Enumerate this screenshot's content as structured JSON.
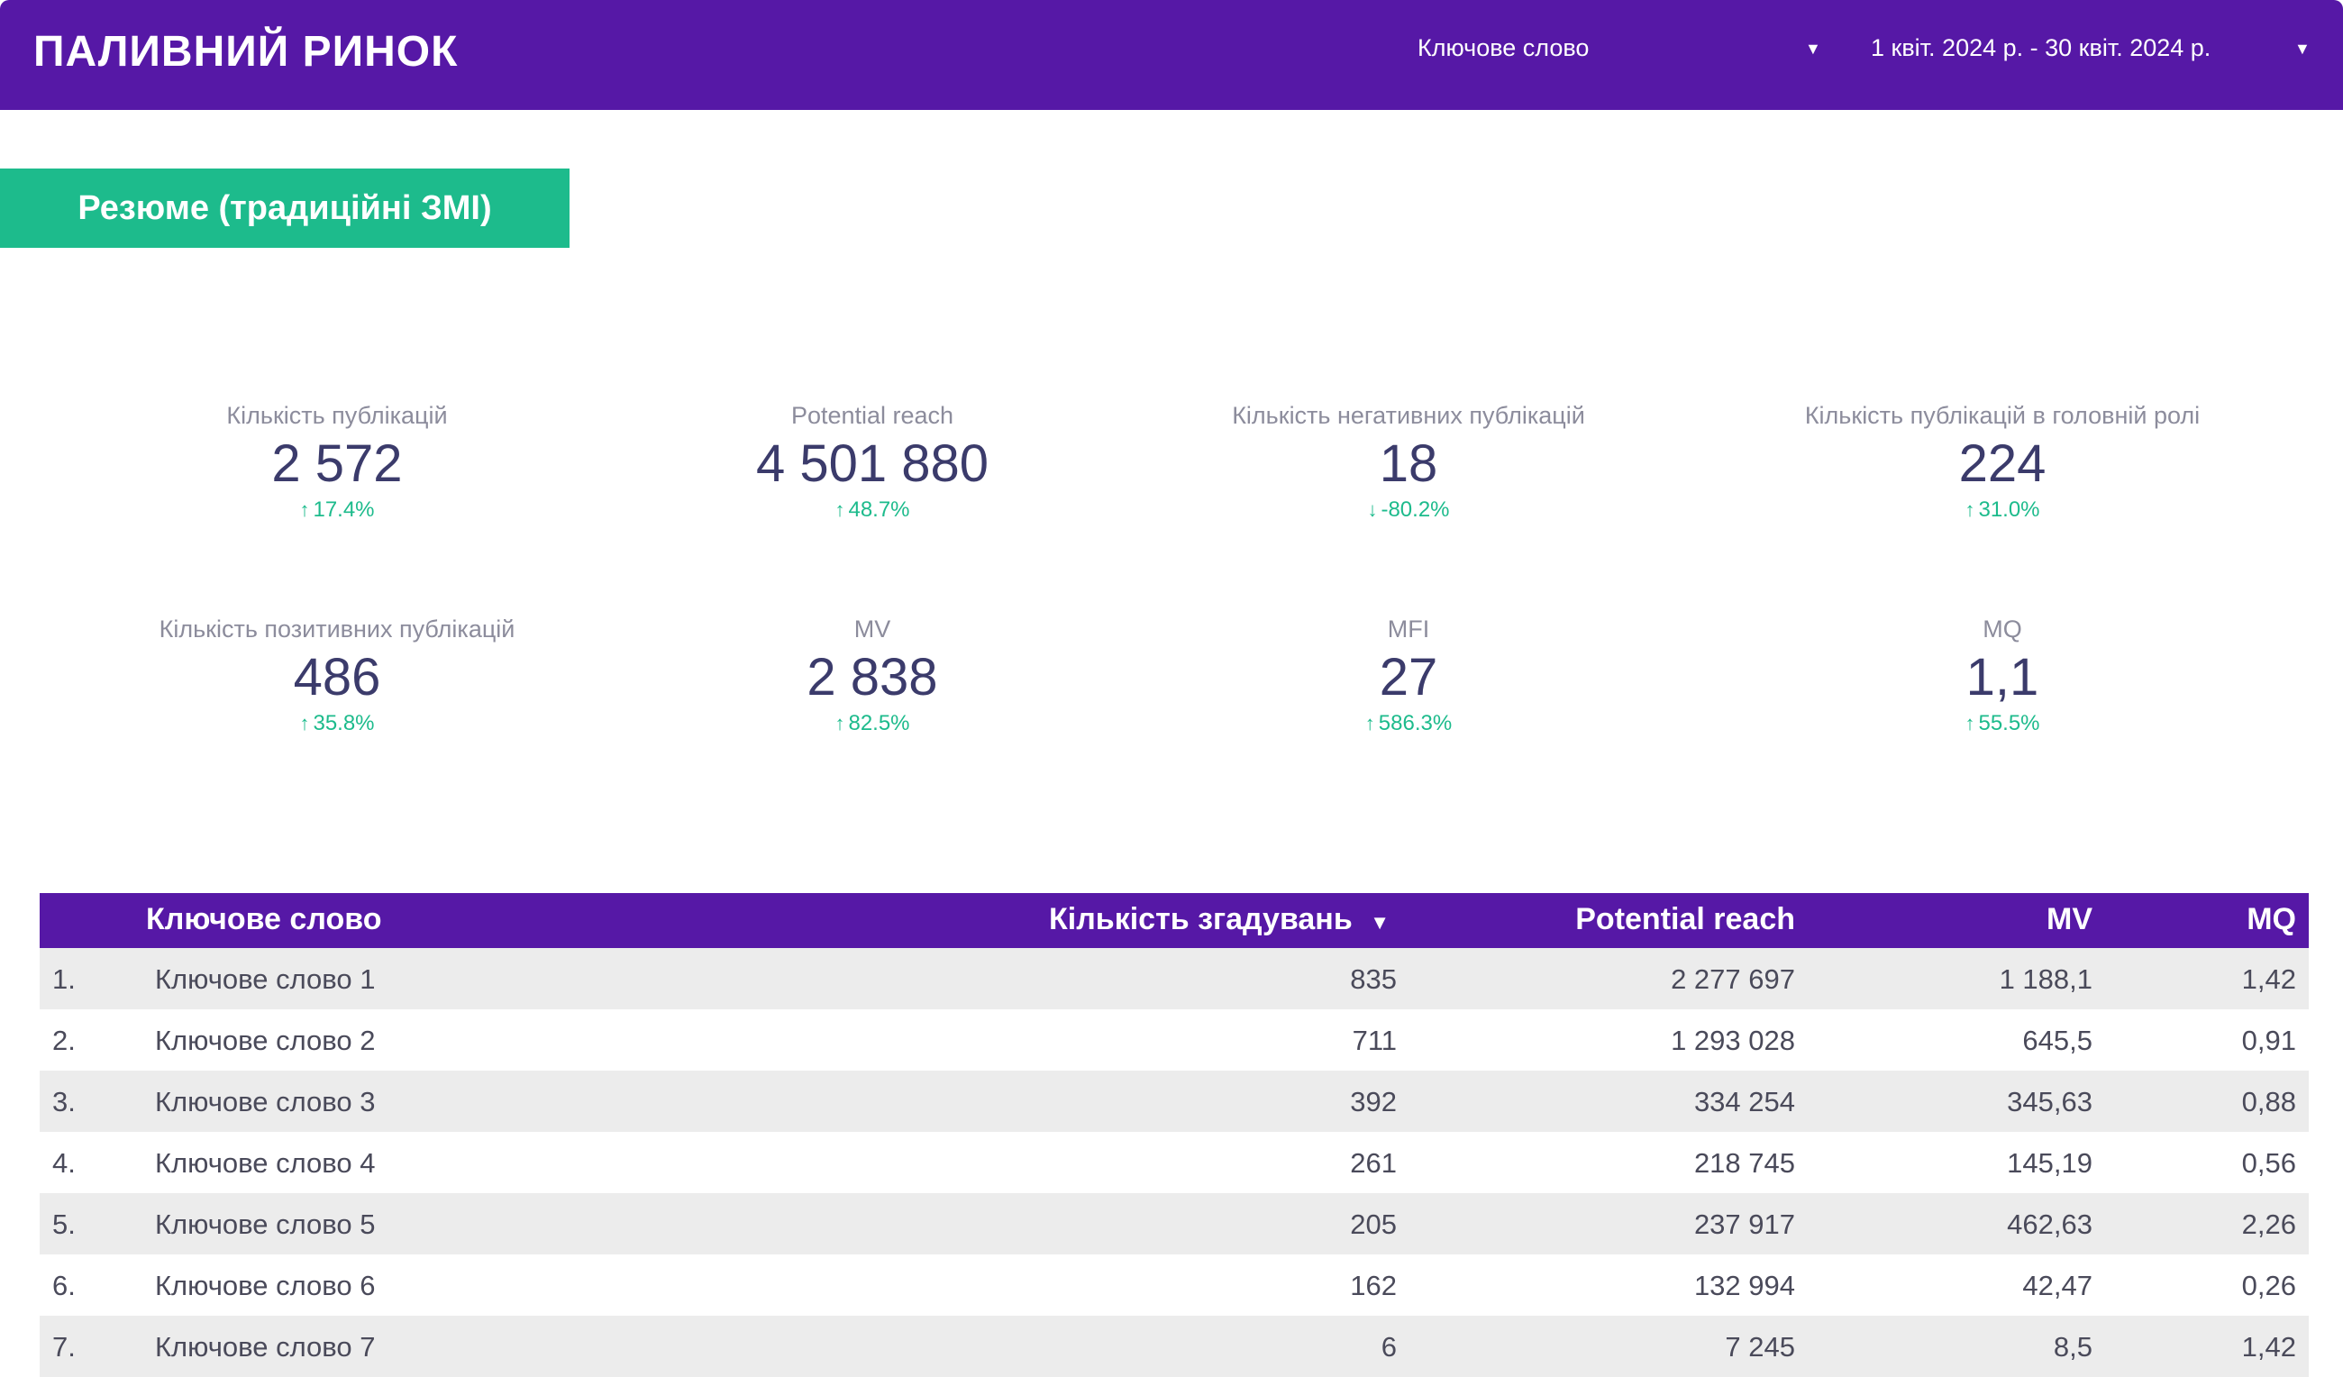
{
  "header": {
    "title": "ПАЛИВНИЙ РИНОК",
    "keyword_filter": {
      "label": "Ключове слово",
      "icon": "caret-down-icon"
    },
    "date_filter": {
      "label": "1 квіт. 2024 р. - 30 квіт. 2024 р.",
      "icon": "caret-down-icon"
    }
  },
  "section": {
    "title": "Резюме (традиційні ЗМІ)"
  },
  "colors": {
    "brand": "#5618a6",
    "accent": "#1dbb8c",
    "row_alt": "#ececec"
  },
  "kpis": [
    {
      "label": "Кількість публікацій",
      "value": "2 572",
      "delta": "17.4%",
      "direction": "up"
    },
    {
      "label": "Potential reach",
      "value": "4 501 880",
      "delta": "48.7%",
      "direction": "up"
    },
    {
      "label": "Кількість негативних публікацій",
      "value": "18",
      "delta": "-80.2%",
      "direction": "down"
    },
    {
      "label": "Кількість публікацій в головній ролі",
      "value": "224",
      "delta": "31.0%",
      "direction": "up"
    },
    {
      "label": "Кількість позитивних публікацій",
      "value": "486",
      "delta": "35.8%",
      "direction": "up"
    },
    {
      "label": "MV",
      "value": "2 838",
      "delta": "82.5%",
      "direction": "up"
    },
    {
      "label": "MFI",
      "value": "27",
      "delta": "586.3%",
      "direction": "up"
    },
    {
      "label": "MQ",
      "value": "1,1",
      "delta": "55.5%",
      "direction": "up"
    }
  ],
  "table": {
    "headers": {
      "keyword": "Ключове слово",
      "mentions": "Кількість згадувань",
      "sort_icon": "▼",
      "reach": "Potential reach",
      "mv": "MV",
      "mq": "MQ"
    },
    "rows": [
      {
        "index": "1.",
        "keyword": "Ключове слово 1",
        "mentions": "835",
        "reach": "2 277 697",
        "mv": "1 188,1",
        "mq": "1,42"
      },
      {
        "index": "2.",
        "keyword": "Ключове слово 2",
        "mentions": "711",
        "reach": "1 293 028",
        "mv": "645,5",
        "mq": "0,91"
      },
      {
        "index": "3.",
        "keyword": "Ключове слово 3",
        "mentions": "392",
        "reach": "334 254",
        "mv": "345,63",
        "mq": "0,88"
      },
      {
        "index": "4.",
        "keyword": "Ключове слово 4",
        "mentions": "261",
        "reach": "218 745",
        "mv": "145,19",
        "mq": "0,56"
      },
      {
        "index": "5.",
        "keyword": "Ключове слово 5",
        "mentions": "205",
        "reach": "237 917",
        "mv": "462,63",
        "mq": "2,26"
      },
      {
        "index": "6.",
        "keyword": "Ключове слово 6",
        "mentions": "162",
        "reach": "132 994",
        "mv": "42,47",
        "mq": "0,26"
      },
      {
        "index": "7.",
        "keyword": "Ключове слово 7",
        "mentions": "6",
        "reach": "7 245",
        "mv": "8,5",
        "mq": "1,42"
      }
    ]
  }
}
